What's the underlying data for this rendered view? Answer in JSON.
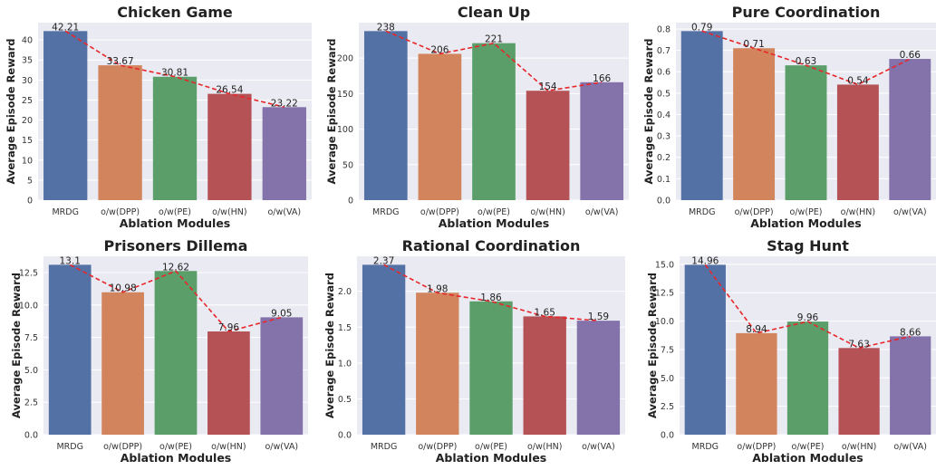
{
  "figure": {
    "categories": [
      "MRDG",
      "o/w(DPP)",
      "o/w(PE)",
      "o/w(HN)",
      "o/w(VA)"
    ],
    "bar_colors": [
      "#5471a5",
      "#d2855c",
      "#5b9e6a",
      "#b45256",
      "#8473ab"
    ],
    "trend_line_color": "#e8262a",
    "plot_background": "#eaeaf2",
    "grid_color": "#ffffff"
  },
  "chart_data": [
    {
      "type": "bar",
      "title": "Chicken Game",
      "xlabel": "Ablation Modules",
      "ylabel": "Average Episode Reward",
      "categories": [
        "MRDG",
        "o/w(DPP)",
        "o/w(PE)",
        "o/w(HN)",
        "o/w(VA)"
      ],
      "values": [
        42.21,
        33.67,
        30.81,
        26.54,
        23.22
      ],
      "value_labels": [
        "42.21",
        "33.67",
        "30.81",
        "26.54",
        "23.22"
      ],
      "ylim": [
        0,
        44.32
      ],
      "yticks": [
        0,
        5,
        10,
        15,
        20,
        25,
        30,
        35,
        40
      ],
      "ytick_labels": [
        "0",
        "5",
        "10",
        "15",
        "20",
        "25",
        "30",
        "35",
        "40"
      ],
      "grid": true
    },
    {
      "type": "bar",
      "title": "Clean Up",
      "xlabel": "Ablation Modules",
      "ylabel": "Average Episode Reward",
      "categories": [
        "MRDG",
        "o/w(DPP)",
        "o/w(PE)",
        "o/w(HN)",
        "o/w(VA)"
      ],
      "values": [
        238,
        206,
        221,
        154,
        166
      ],
      "value_labels": [
        "238",
        "206",
        "221",
        "154",
        "166"
      ],
      "ylim": [
        0,
        249.9
      ],
      "yticks": [
        0,
        50,
        100,
        150,
        200
      ],
      "ytick_labels": [
        "0",
        "50",
        "100",
        "150",
        "200"
      ],
      "grid": true
    },
    {
      "type": "bar",
      "title": "Pure Coordination",
      "xlabel": "Ablation Modules",
      "ylabel": "Average Episode Reward",
      "categories": [
        "MRDG",
        "o/w(DPP)",
        "o/w(PE)",
        "o/w(HN)",
        "o/w(VA)"
      ],
      "values": [
        0.79,
        0.71,
        0.63,
        0.54,
        0.66
      ],
      "value_labels": [
        "0.79",
        "0.71",
        "0.63",
        "0.54",
        "0.66"
      ],
      "ylim": [
        0,
        0.8295
      ],
      "yticks": [
        0,
        0.1,
        0.2,
        0.3,
        0.4,
        0.5,
        0.6,
        0.7,
        0.8
      ],
      "ytick_labels": [
        "0.0",
        "0.1",
        "0.2",
        "0.3",
        "0.4",
        "0.5",
        "0.6",
        "0.7",
        "0.8"
      ],
      "grid": true
    },
    {
      "type": "bar",
      "title": "Prisoners Dillema",
      "xlabel": "Ablation Modules",
      "ylabel": "Average Episode Reward",
      "categories": [
        "MRDG",
        "o/w(DPP)",
        "o/w(PE)",
        "o/w(HN)",
        "o/w(VA)"
      ],
      "values": [
        13.1,
        10.98,
        12.62,
        7.96,
        9.05
      ],
      "value_labels": [
        "13.1",
        "10.98",
        "12.62",
        "7.96",
        "9.05"
      ],
      "ylim": [
        0,
        13.755
      ],
      "yticks": [
        0,
        2.5,
        5,
        7.5,
        10,
        12.5
      ],
      "ytick_labels": [
        "0.0",
        "2.5",
        "5.0",
        "7.5",
        "10.0",
        "12.5"
      ],
      "grid": true
    },
    {
      "type": "bar",
      "title": "Rational Coordination",
      "xlabel": "Ablation Modules",
      "ylabel": "Average Episode Reward",
      "categories": [
        "MRDG",
        "o/w(DPP)",
        "o/w(PE)",
        "o/w(HN)",
        "o/w(VA)"
      ],
      "values": [
        2.37,
        1.98,
        1.86,
        1.65,
        1.59
      ],
      "value_labels": [
        "2.37",
        "1.98",
        "1.86",
        "1.65",
        "1.59"
      ],
      "ylim": [
        0,
        2.4885
      ],
      "yticks": [
        0,
        0.5,
        1,
        1.5,
        2
      ],
      "ytick_labels": [
        "0.0",
        "0.5",
        "1.0",
        "1.5",
        "2.0"
      ],
      "grid": true
    },
    {
      "type": "bar",
      "title": "Stag Hunt",
      "xlabel": "Ablation Modules",
      "ylabel": "Average Episode Reward",
      "categories": [
        "MRDG",
        "o/w(DPP)",
        "o/w(PE)",
        "o/w(HN)",
        "o/w(VA)"
      ],
      "values": [
        14.96,
        8.94,
        9.96,
        7.63,
        8.66
      ],
      "value_labels": [
        "14.96",
        "8.94",
        "9.96",
        "7.63",
        "8.66"
      ],
      "ylim": [
        0,
        15.708
      ],
      "yticks": [
        0,
        2.5,
        5,
        7.5,
        10,
        12.5,
        15
      ],
      "ytick_labels": [
        "0.0",
        "2.5",
        "5.0",
        "7.5",
        "10.0",
        "12.5",
        "15.0"
      ],
      "grid": true
    }
  ]
}
